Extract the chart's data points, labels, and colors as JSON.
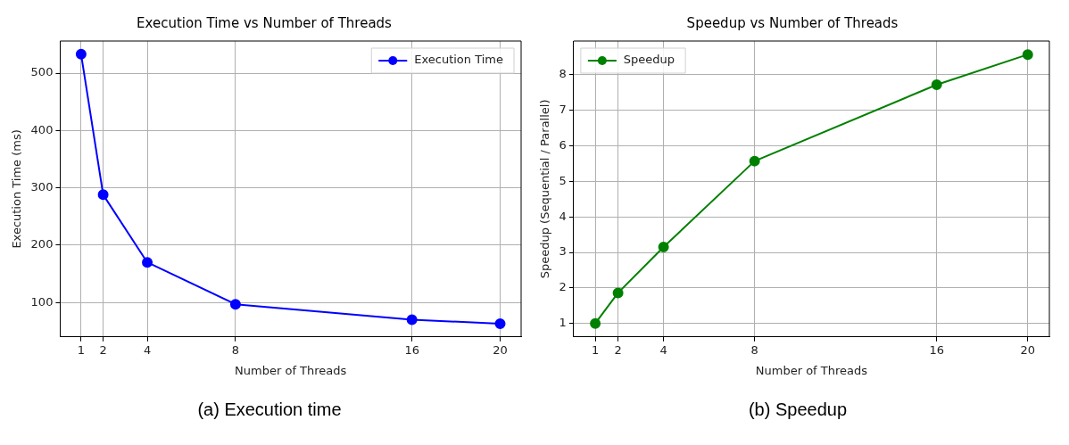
{
  "chart_data": [
    {
      "type": "line",
      "title": "Execution Time vs Number of Threads",
      "xlabel": "Number of Threads",
      "ylabel": "Execution Time (ms)",
      "x": [
        1,
        2,
        4,
        8,
        16,
        20
      ],
      "series": [
        {
          "name": "Execution Time",
          "color": "#0000ff",
          "values": [
            533,
            288,
            170,
            97,
            70,
            63
          ]
        }
      ],
      "xlim": [
        0.05,
        20.95
      ],
      "xticks": [
        1,
        2,
        4,
        8,
        16,
        20
      ],
      "ylim": [
        40,
        556
      ],
      "yticks": [
        100,
        200,
        300,
        400,
        500
      ],
      "grid": true,
      "legend": "top right",
      "marker": "circle",
      "line_style": "solid",
      "annotations": [
        "(a) Execution time"
      ]
    },
    {
      "type": "line",
      "title": "Speedup vs Number of Threads",
      "xlabel": "Number of Threads",
      "ylabel": "Speedup (Sequential / Parallel)",
      "x": [
        1,
        2,
        4,
        8,
        16,
        20
      ],
      "series": [
        {
          "name": "Speedup",
          "color": "#008000",
          "values": [
            1,
            1.86,
            3.15,
            5.57,
            7.72,
            8.57
          ]
        }
      ],
      "xlim": [
        0.05,
        20.95
      ],
      "xticks": [
        1,
        2,
        4,
        8,
        16,
        20
      ],
      "ylim": [
        0.62,
        8.95
      ],
      "yticks": [
        1,
        2,
        3,
        4,
        5,
        6,
        7,
        8
      ],
      "grid": true,
      "legend": "top left",
      "marker": "circle",
      "line_style": "solid",
      "annotations": [
        "(b) Speedup"
      ]
    }
  ]
}
